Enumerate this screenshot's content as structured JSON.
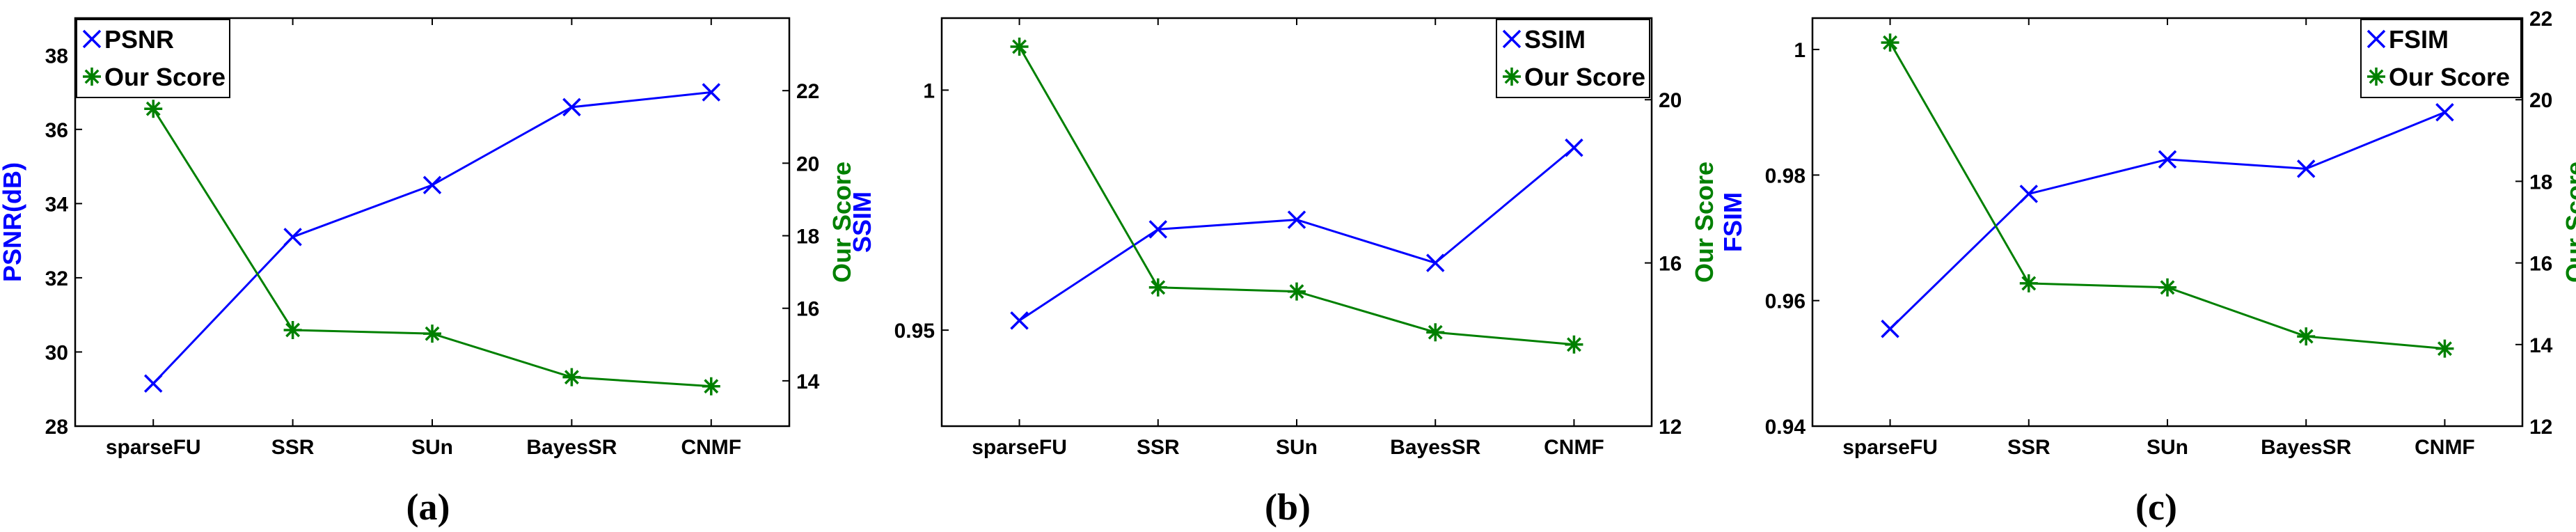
{
  "colors": {
    "metric": "#0000ff",
    "score": "#008000",
    "axis": "#000000"
  },
  "chart_data": [
    {
      "type": "line",
      "panel_label": "(a)",
      "categories": [
        "sparseFU",
        "SSR",
        "SUn",
        "BayesSR",
        "CNMF"
      ],
      "left_axis": {
        "label": "PSNR(dB)",
        "ylim": [
          28,
          39
        ],
        "ticks": [
          "28",
          "30",
          "32",
          "34",
          "36",
          "38"
        ]
      },
      "right_axis": {
        "label": "Our Score",
        "ylim": [
          12.75,
          24.0
        ],
        "ticks": [
          "14",
          "16",
          "18",
          "20",
          "22"
        ]
      },
      "series": [
        {
          "name": "PSNR",
          "axis": "left",
          "marker": "x",
          "values": [
            29.15,
            33.1,
            34.5,
            36.6,
            37.0
          ]
        },
        {
          "name": "Our Score",
          "axis": "right",
          "marker": "star",
          "values": [
            21.5,
            15.4,
            15.3,
            14.1,
            13.85
          ]
        }
      ],
      "legend": "top-left"
    },
    {
      "type": "line",
      "panel_label": "(b)",
      "categories": [
        "sparseFU",
        "SSR",
        "SUn",
        "BayesSR",
        "CNMF"
      ],
      "left_axis": {
        "label": "SSIM",
        "ylim": [
          0.93,
          1.015
        ],
        "ticks": [
          "0.95",
          "1"
        ]
      },
      "right_axis": {
        "label": "Our Score",
        "ylim": [
          12,
          22
        ],
        "ticks": [
          "12",
          "16",
          "20"
        ]
      },
      "series": [
        {
          "name": "SSIM",
          "axis": "left",
          "marker": "x",
          "values": [
            0.952,
            0.971,
            0.973,
            0.964,
            0.988
          ]
        },
        {
          "name": "Our Score",
          "axis": "right",
          "marker": "star",
          "values": [
            21.3,
            15.4,
            15.3,
            14.3,
            14.0
          ]
        }
      ],
      "legend": "top-right"
    },
    {
      "type": "line",
      "panel_label": "(c)",
      "categories": [
        "sparseFU",
        "SSR",
        "SUn",
        "BayesSR",
        "CNMF"
      ],
      "left_axis": {
        "label": "FSIM",
        "ylim": [
          0.94,
          1.005
        ],
        "ticks": [
          "0.94",
          "0.96",
          "0.98",
          "1"
        ]
      },
      "right_axis": {
        "label": "Our Score",
        "ylim": [
          12,
          22
        ],
        "ticks": [
          "12",
          "14",
          "16",
          "18",
          "20",
          "22"
        ]
      },
      "series": [
        {
          "name": "FSIM",
          "axis": "left",
          "marker": "x",
          "values": [
            0.9555,
            0.977,
            0.9825,
            0.981,
            0.99
          ]
        },
        {
          "name": "Our Score",
          "axis": "right",
          "marker": "star",
          "values": [
            21.4,
            15.5,
            15.4,
            14.2,
            13.9
          ]
        }
      ],
      "legend": "top-right"
    }
  ]
}
